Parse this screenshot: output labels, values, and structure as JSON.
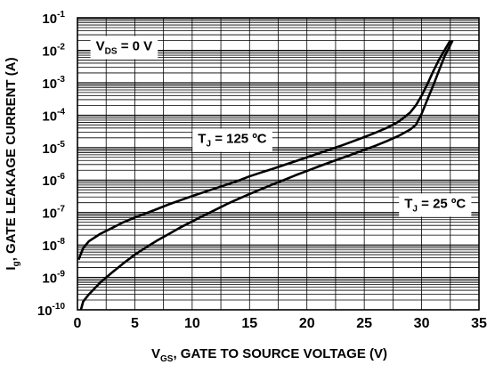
{
  "chart_data": {
    "type": "line",
    "xlabel": {
      "main": "V",
      "sub": "GS",
      "rest": ", GATE TO SOURCE VOLTAGE (V)"
    },
    "ylabel": {
      "main": "I",
      "sub": "g",
      "rest": ", GATE LEAKAGE CURRENT (A)"
    },
    "xlim": [
      0,
      35
    ],
    "ylim": [
      1e-10,
      0.1
    ],
    "yscale": "log",
    "grid": true,
    "x_ticks": [
      {
        "value": 0,
        "label": "0"
      },
      {
        "value": 5,
        "label": "5"
      },
      {
        "value": 10,
        "label": "10"
      },
      {
        "value": 15,
        "label": "15"
      },
      {
        "value": 20,
        "label": "20"
      },
      {
        "value": 25,
        "label": "25"
      },
      {
        "value": 30,
        "label": "30"
      },
      {
        "value": 35,
        "label": "35"
      }
    ],
    "y_ticks": [
      {
        "value": 1e-10,
        "base": "10",
        "exp": "-10"
      },
      {
        "value": 1e-09,
        "base": "10",
        "exp": "-9"
      },
      {
        "value": 1e-08,
        "base": "10",
        "exp": "-8"
      },
      {
        "value": 1e-07,
        "base": "10",
        "exp": "-7"
      },
      {
        "value": 1e-06,
        "base": "10",
        "exp": "-6"
      },
      {
        "value": 1e-05,
        "base": "10",
        "exp": "-5"
      },
      {
        "value": 0.0001,
        "base": "10",
        "exp": "-4"
      },
      {
        "value": 0.001,
        "base": "10",
        "exp": "-3"
      },
      {
        "value": 0.01,
        "base": "10",
        "exp": "-2"
      },
      {
        "value": 0.1,
        "base": "10",
        "exp": "-1"
      }
    ],
    "annotations": [
      {
        "id": "vds",
        "main": "V",
        "sub": "DS",
        "rest": " = 0 V",
        "x": 1.6,
        "y": 0.01
      },
      {
        "id": "tj125",
        "main": "T",
        "sub": "J",
        "rest": " = 125 ºC",
        "x": 10.5,
        "y": 1.4e-05
      },
      {
        "id": "tj25",
        "main": "T",
        "sub": "J",
        "rest": " = 25 ºC",
        "x": 28.5,
        "y": 1.4e-07
      }
    ],
    "series": [
      {
        "points": [
          [
            0.1,
            3.5e-09
          ],
          [
            0.5,
            8e-09
          ],
          [
            1,
            1.3e-08
          ],
          [
            2,
            2.2e-08
          ],
          [
            3,
            3.3e-08
          ],
          [
            4,
            5e-08
          ],
          [
            5,
            7e-08
          ],
          [
            6,
            9.5e-08
          ],
          [
            7,
            1.3e-07
          ],
          [
            8,
            1.8e-07
          ],
          [
            9,
            2.4e-07
          ],
          [
            10,
            3.2e-07
          ],
          [
            11,
            4.2e-07
          ],
          [
            12,
            5.5e-07
          ],
          [
            13,
            7.2e-07
          ],
          [
            14,
            9.5e-07
          ],
          [
            15,
            1.3e-06
          ],
          [
            16,
            1.7e-06
          ],
          [
            17,
            2.2e-06
          ],
          [
            18,
            2.9e-06
          ],
          [
            19,
            3.8e-06
          ],
          [
            20,
            5e-06
          ],
          [
            21,
            6.6e-06
          ],
          [
            22,
            8.7e-06
          ],
          [
            23,
            1.15e-05
          ],
          [
            24,
            1.55e-05
          ],
          [
            25,
            2.1e-05
          ],
          [
            26,
            2.9e-05
          ],
          [
            27,
            4.1e-05
          ],
          [
            28,
            6.3e-05
          ],
          [
            29,
            0.00012
          ],
          [
            29.5,
            0.0002
          ],
          [
            30,
            0.0004
          ],
          [
            30.5,
            0.0009
          ],
          [
            31,
            0.0022
          ],
          [
            31.5,
            0.005
          ],
          [
            32,
            0.01
          ],
          [
            32.5,
            0.02
          ]
        ]
      },
      {
        "points": [
          [
            0.3,
            1e-10
          ],
          [
            0.5,
            1.8e-10
          ],
          [
            1,
            3e-10
          ],
          [
            2,
            7e-10
          ],
          [
            3,
            1.4e-09
          ],
          [
            4,
            2.7e-09
          ],
          [
            5,
            5e-09
          ],
          [
            6,
            8.5e-09
          ],
          [
            7,
            1.4e-08
          ],
          [
            8,
            2.2e-08
          ],
          [
            9,
            3.5e-08
          ],
          [
            10,
            5.3e-08
          ],
          [
            11,
            8e-08
          ],
          [
            12,
            1.2e-07
          ],
          [
            13,
            1.8e-07
          ],
          [
            14,
            2.6e-07
          ],
          [
            15,
            3.7e-07
          ],
          [
            16,
            5.2e-07
          ],
          [
            17,
            7.3e-07
          ],
          [
            18,
            1e-06
          ],
          [
            19,
            1.4e-06
          ],
          [
            20,
            1.9e-06
          ],
          [
            21,
            2.6e-06
          ],
          [
            22,
            3.5e-06
          ],
          [
            23,
            4.7e-06
          ],
          [
            24,
            6.3e-06
          ],
          [
            25,
            8.5e-06
          ],
          [
            26,
            1.15e-05
          ],
          [
            27,
            1.6e-05
          ],
          [
            28,
            2.3e-05
          ],
          [
            29,
            3.6e-05
          ],
          [
            29.5,
            5e-05
          ],
          [
            30,
            0.00011
          ],
          [
            30.5,
            0.0003
          ],
          [
            31,
            0.0008
          ],
          [
            31.5,
            0.0023
          ],
          [
            32,
            0.0065
          ],
          [
            32.7,
            0.02
          ]
        ]
      }
    ]
  }
}
